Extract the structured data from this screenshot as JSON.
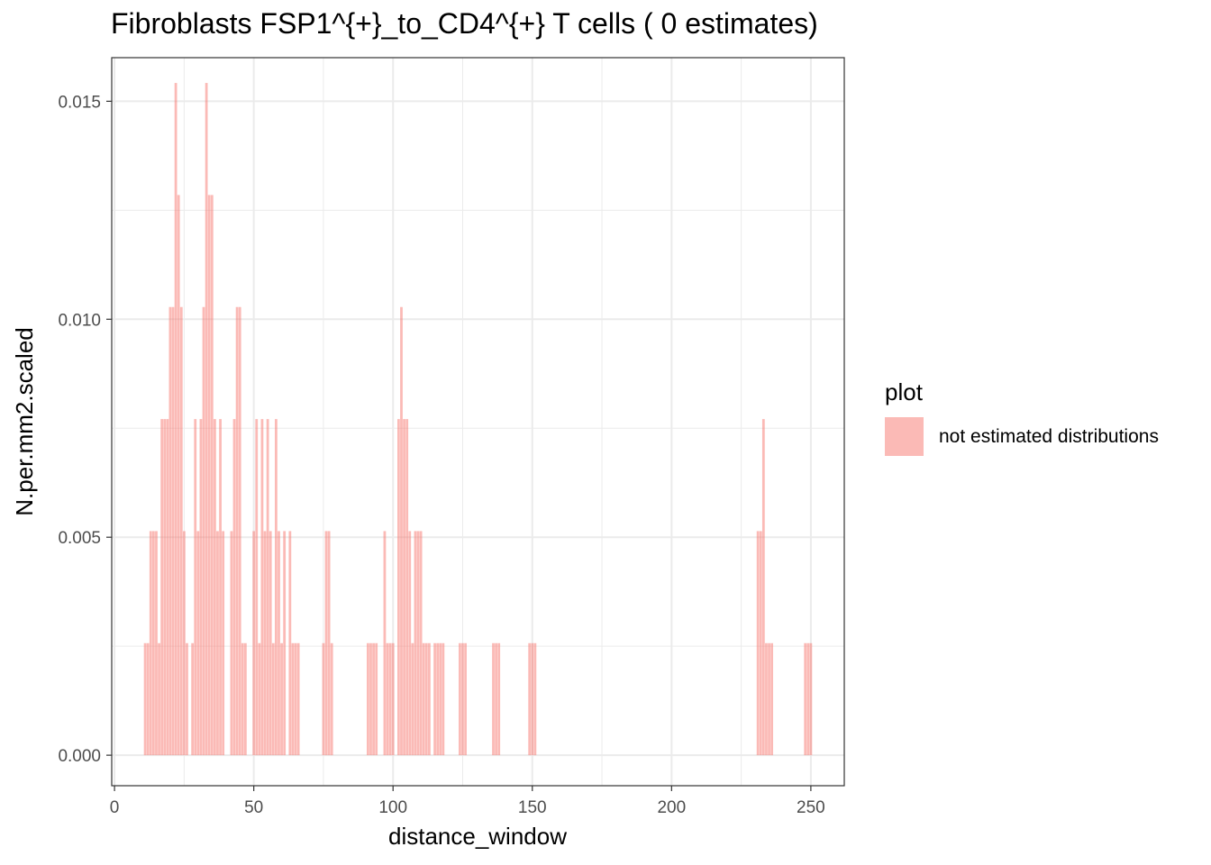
{
  "chart_data": {
    "type": "bar",
    "title": "Fibroblasts FSP1^{+}_to_CD4^{+} T cells ( 0 estimates)",
    "xlabel": "distance_window",
    "ylabel": "N.per.mm2.scaled",
    "xlim": [
      -1,
      262
    ],
    "ylim": [
      -0.0007,
      0.016
    ],
    "x_ticks": [
      0,
      50,
      100,
      150,
      200,
      250
    ],
    "x_tick_labels": [
      "0",
      "50",
      "100",
      "150",
      "200",
      "250"
    ],
    "y_ticks": [
      0.0,
      0.005,
      0.01,
      0.015
    ],
    "y_tick_labels": [
      "0.000",
      "0.005",
      "0.010",
      "0.015"
    ],
    "grid": true,
    "legend": {
      "title": "plot",
      "placement": "right",
      "entries": [
        {
          "label": "not estimated distributions",
          "color": "#F8766D"
        }
      ]
    },
    "series": [
      {
        "name": "not estimated distributions",
        "color": "#F8766D",
        "opacity": 0.5,
        "x": [
          11,
          12,
          13,
          14,
          15,
          16,
          17,
          18,
          19,
          20,
          21,
          22,
          23,
          24,
          25,
          26,
          28,
          29,
          30,
          31,
          32,
          33,
          34,
          35,
          36,
          37,
          38,
          39,
          42,
          43,
          44,
          45,
          46,
          47,
          50,
          51,
          52,
          53,
          54,
          55,
          56,
          57,
          58,
          59,
          60,
          61,
          63,
          64,
          65,
          66,
          75,
          76,
          77,
          78,
          91,
          92,
          93,
          94,
          97,
          98,
          99,
          100,
          102,
          103,
          104,
          105,
          106,
          107,
          108,
          109,
          110,
          111,
          112,
          113,
          115,
          116,
          117,
          118,
          124,
          125,
          126,
          136,
          137,
          138,
          149,
          150,
          151,
          231,
          232,
          233,
          234,
          235,
          236,
          248,
          249,
          250
        ],
        "values": [
          0.00257,
          0.00257,
          0.00514,
          0.00514,
          0.00514,
          0.00257,
          0.00771,
          0.00771,
          0.00771,
          0.01028,
          0.01028,
          0.01542,
          0.01285,
          0.01028,
          0.00514,
          0.00257,
          0.00257,
          0.00771,
          0.00514,
          0.00771,
          0.01028,
          0.01542,
          0.01285,
          0.01285,
          0.00771,
          0.00514,
          0.00771,
          0.00514,
          0.00514,
          0.00771,
          0.01028,
          0.01028,
          0.00257,
          0.00257,
          0.00514,
          0.00771,
          0.00257,
          0.00771,
          0.00514,
          0.00771,
          0.00514,
          0.00257,
          0.00771,
          0.00514,
          0.00257,
          0.00514,
          0.00514,
          0.00257,
          0.00257,
          0.00257,
          0.00257,
          0.00514,
          0.00514,
          0.00257,
          0.00257,
          0.00257,
          0.00257,
          0.00257,
          0.00514,
          0.00257,
          0.00257,
          0.00257,
          0.00771,
          0.01028,
          0.00771,
          0.00771,
          0.00514,
          0.00257,
          0.00514,
          0.00514,
          0.00514,
          0.00257,
          0.00257,
          0.00257,
          0.00257,
          0.00257,
          0.00257,
          0.00257,
          0.00257,
          0.00257,
          0.00257,
          0.00257,
          0.00257,
          0.00257,
          0.00257,
          0.00257,
          0.00257,
          0.00514,
          0.00514,
          0.00771,
          0.00257,
          0.00257,
          0.00257,
          0.00257,
          0.00257,
          0.00257
        ]
      }
    ]
  }
}
